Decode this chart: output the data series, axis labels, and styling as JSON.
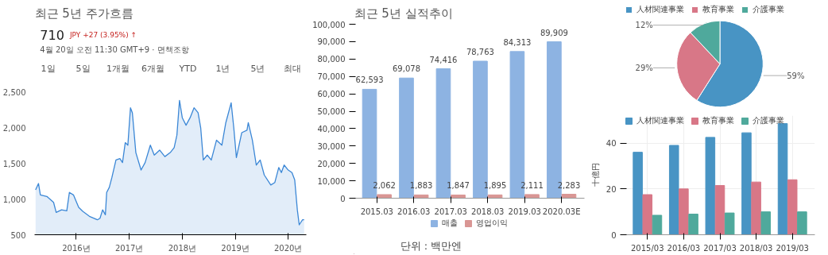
{
  "chart_data": [
    {
      "type": "area",
      "title": "최근 5년 주가흐름",
      "annotations": [
        "710",
        "JPY +27 (3.95%) ↑",
        "4월 20일 오전 11:30 GMT+9 · 면책조항",
        "1일",
        "5일",
        "1개월",
        "6개월",
        "YTD",
        "1년",
        "5년",
        "최대"
      ],
      "x": [
        "2015-03-27",
        "2015-04-16",
        "2015-04-29",
        "2015-06-13",
        "2015-07-29",
        "2015-08-16",
        "2015-09-22",
        "2015-10-28",
        "2015-11-15",
        "2015-12-13",
        "2016-01-18",
        "2016-02-15",
        "2016-04-01",
        "2016-05-26",
        "2016-06-13",
        "2016-07-01",
        "2016-07-20",
        "2016-07-29",
        "2016-08-16",
        "2016-09-03",
        "2016-10-01",
        "2016-10-28",
        "2016-11-15",
        "2016-12-04",
        "2016-12-22",
        "2017-01-09",
        "2017-01-22",
        "2017-02-15",
        "2017-03-23",
        "2017-04-20",
        "2017-05-26",
        "2017-06-22",
        "2017-07-29",
        "2017-09-03",
        "2017-10-10",
        "2017-11-06",
        "2017-11-25",
        "2017-12-13",
        "2018-01-01",
        "2018-01-27",
        "2018-02-24",
        "2018-03-23",
        "2018-04-20",
        "2018-05-08",
        "2018-05-26",
        "2018-06-22",
        "2018-07-20",
        "2018-08-25",
        "2018-10-01",
        "2018-10-28",
        "2018-12-04",
        "2018-12-22",
        "2019-01-09",
        "2019-02-15",
        "2019-03-23",
        "2019-04-01",
        "2019-04-29",
        "2019-05-26",
        "2019-06-22",
        "2019-07-20",
        "2019-09-03",
        "2019-10-01",
        "2019-10-28",
        "2019-11-15",
        "2019-12-04",
        "2020-01-01",
        "2020-01-27",
        "2020-02-15",
        "2020-03-04",
        "2020-03-17",
        "2020-04-09",
        "2020-04-20"
      ],
      "series": [
        {
          "color": "#3b87d6",
          "values": [
            1127,
            1217,
            1057,
            1036,
            953,
            813,
            848,
            834,
            1092,
            1057,
            883,
            827,
            758,
            709,
            730,
            848,
            779,
            1092,
            1162,
            1301,
            1545,
            1566,
            1510,
            1788,
            1753,
            2276,
            2206,
            1649,
            1405,
            1510,
            1753,
            1614,
            1684,
            1593,
            1649,
            1719,
            1893,
            2380,
            2137,
            2032,
            2137,
            2276,
            2206,
            1997,
            1545,
            1614,
            1545,
            1823,
            1753,
            2067,
            2345,
            1997,
            1579,
            1928,
            1962,
            2067,
            1823,
            1475,
            1545,
            1336,
            1196,
            1231,
            1440,
            1370,
            1475,
            1405,
            1370,
            1266,
            848,
            639,
            709,
            710
          ]
        }
      ],
      "xlim": [
        "2015-03-20",
        "2020-05-05"
      ],
      "ylim": [
        500,
        2500
      ],
      "yticks": [
        {
          "value": 500,
          "label": "500"
        },
        {
          "value": 1000,
          "label": "1,000"
        },
        {
          "value": 1500,
          "label": "1,500"
        },
        {
          "value": 2000,
          "label": "2,000"
        },
        {
          "value": 2500,
          "label": "2,500"
        }
      ],
      "xticks": [
        {
          "value": "2016-01-01",
          "label": "2016년"
        },
        {
          "value": "2017-01-01",
          "label": "2017년"
        },
        {
          "value": "2018-01-01",
          "label": "2018년"
        },
        {
          "value": "2019-01-01",
          "label": "2019년"
        },
        {
          "value": "2020-01-01",
          "label": "2020년"
        }
      ]
    },
    {
      "type": "bar",
      "title": "최근 5년 실적추이",
      "annotations": [
        "단위 : 백만엔"
      ],
      "categories": [
        "2015.03",
        "2016.03",
        "2017.03",
        "2018.03",
        "2019.03",
        "2020.03E"
      ],
      "series": [
        {
          "name": "매출",
          "color": "#8db3e2",
          "values": [
            62593,
            69078,
            74416,
            78763,
            84313,
            89909
          ],
          "value_labels": [
            "62,593",
            "69,078",
            "74,416",
            "78,763",
            "84,313",
            "89,909"
          ]
        },
        {
          "name": "영업이익",
          "color": "#d99694",
          "values": [
            2062,
            1883,
            1847,
            1895,
            2111,
            2283
          ],
          "value_labels": [
            "2,062",
            "1,883",
            "1,847",
            "1,895",
            "2,111",
            "2,283"
          ]
        }
      ],
      "ylim": [
        0,
        100000
      ],
      "yticks": [
        {
          "value": 0,
          "label": "0"
        },
        {
          "value": 10000,
          "label": "10,000"
        },
        {
          "value": 20000,
          "label": "20,000"
        },
        {
          "value": 30000,
          "label": "30,000"
        },
        {
          "value": 40000,
          "label": "40,000"
        },
        {
          "value": 50000,
          "label": "50,000"
        },
        {
          "value": 60000,
          "label": "60,000"
        },
        {
          "value": 70000,
          "label": "70,000"
        },
        {
          "value": 80000,
          "label": "80,000"
        },
        {
          "value": 90000,
          "label": "90,000"
        },
        {
          "value": 100000,
          "label": "100,000"
        }
      ],
      "legend": "bottom"
    },
    {
      "type": "pie",
      "categories": [
        "人材関連事業",
        "教育事業",
        "介護事業"
      ],
      "values": [
        59,
        29,
        12
      ],
      "colors": [
        "#4894c4",
        "#d87787",
        "#4fa99c"
      ],
      "value_labels": [
        "59%",
        "29%",
        "12%"
      ],
      "legend": "top left"
    },
    {
      "type": "bar",
      "ylabel": "十億円",
      "categories": [
        "2015/03",
        "2016/03",
        "2017/03",
        "2018/03",
        "2019/03"
      ],
      "series": [
        {
          "name": "人材関連事業",
          "color": "#4894c4",
          "values": [
            36,
            39,
            42.5,
            44.5,
            48.5
          ]
        },
        {
          "name": "教育事業",
          "color": "#d87787",
          "values": [
            17.5,
            20,
            21.5,
            23,
            24
          ]
        },
        {
          "name": "介護事業",
          "color": "#4fa99c",
          "values": [
            8.5,
            9,
            9.5,
            10,
            10
          ]
        }
      ],
      "ylim": [
        0,
        52
      ],
      "yticks": [
        0,
        20,
        40
      ],
      "grid": true,
      "legend": "top left"
    }
  ]
}
